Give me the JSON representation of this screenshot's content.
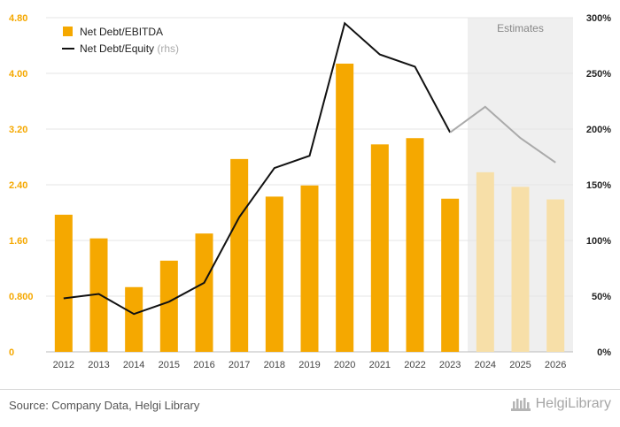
{
  "chart_data": {
    "type": "bar+line",
    "categories": [
      "2012",
      "2013",
      "2014",
      "2015",
      "2016",
      "2017",
      "2018",
      "2019",
      "2020",
      "2021",
      "2022",
      "2023",
      "2024",
      "2025",
      "2026"
    ],
    "series": [
      {
        "name": "Net Debt/EBITDA",
        "axis": "left",
        "kind": "bar",
        "values": [
          1.97,
          1.63,
          0.93,
          1.31,
          1.7,
          2.77,
          2.23,
          2.39,
          4.14,
          2.98,
          3.07,
          2.2,
          2.58,
          2.37,
          2.19
        ],
        "color": "#f5a800",
        "estimate_color": "#f7dfa8"
      },
      {
        "name": "Net Debt/Equity",
        "axis": "right",
        "kind": "line",
        "values": [
          48,
          52,
          34,
          45,
          62,
          121,
          165,
          176,
          295,
          267,
          256,
          197,
          220,
          192,
          170
        ],
        "color": "#111111",
        "estimate_color": "#aaaaaa"
      }
    ],
    "estimates_from_index": 12,
    "estimates_label": "Estimates",
    "legend": [
      {
        "label": "Net Debt/EBITDA",
        "suffix": ""
      },
      {
        "label": "Net Debt/Equity",
        "suffix": " (rhs)"
      }
    ],
    "y_left": {
      "ticks": [
        "0",
        "0.800",
        "1.60",
        "2.40",
        "3.20",
        "4.00",
        "4.80"
      ],
      "range": [
        0,
        4.8
      ],
      "color": "#f5a800"
    },
    "y_right": {
      "ticks": [
        "0%",
        "50%",
        "100%",
        "150%",
        "200%",
        "250%",
        "300%"
      ],
      "range": [
        0,
        300
      ],
      "color": "#222222"
    },
    "grid": true
  },
  "footer": {
    "source": "Source: Company Data, Helgi Library",
    "brand": "HelgiLibrary"
  }
}
